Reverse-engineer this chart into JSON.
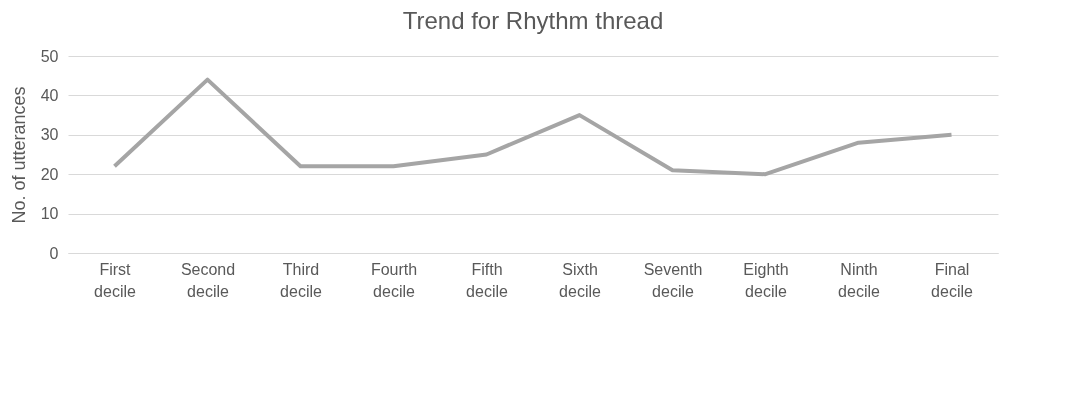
{
  "chart_data": {
    "type": "line",
    "title": "Trend for Rhythm thread",
    "ylabel": "No. of utterances",
    "categories": [
      "First decile",
      "Second decile",
      "Third decile",
      "Fourth decile",
      "Fifth decile",
      "Sixth decile",
      "Seventh decile",
      "Eighth decile",
      "Ninth decile",
      "Final decile"
    ],
    "series": [
      {
        "color": "#a5a5a5",
        "values": [
          22,
          44,
          22,
          22,
          25,
          35,
          21,
          20,
          28,
          30
        ]
      }
    ],
    "ylim": [
      0,
      50
    ],
    "yticks": [
      0,
      10,
      20,
      30,
      40,
      50
    ],
    "grid": "y",
    "legend": false,
    "marker": "none",
    "line_style": "solid"
  }
}
